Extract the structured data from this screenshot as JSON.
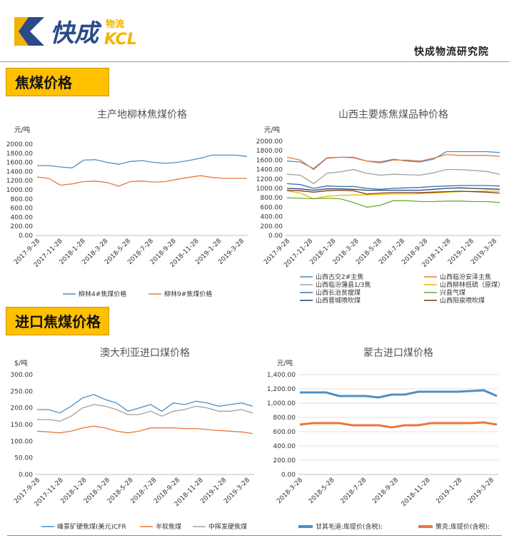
{
  "header": {
    "logo_main": "快成",
    "logo_sub": "物流",
    "logo_en": "KCL",
    "institute": "快成物流研究院"
  },
  "sections": {
    "coke_price": "焦煤价格",
    "import_coke": "进口焦煤价格"
  },
  "chart_data": [
    {
      "id": "linlin",
      "type": "line",
      "title": "主产地柳林焦煤价格",
      "unit_label": "元/吨",
      "ylim": [
        0,
        2000
      ],
      "yticks": [
        "0.00",
        "200.00",
        "400.00",
        "600.00",
        "800.00",
        "1000.00",
        "1200.00",
        "1400.00",
        "1600.00",
        "1800.00",
        "2000.00"
      ],
      "x_labels": [
        "2017-9-28",
        "2017-11-28",
        "2018-1-28",
        "2018-3-28",
        "2018-5-28",
        "2018-7-28",
        "2018-9-28",
        "2018-11-28",
        "2019-1-28",
        "2019-3-28"
      ],
      "series": [
        {
          "name": "柳林4#焦煤价格",
          "color": "#4a90c8",
          "values": [
            1530,
            1530,
            1500,
            1480,
            1650,
            1660,
            1600,
            1560,
            1620,
            1640,
            1600,
            1580,
            1600,
            1640,
            1690,
            1760,
            1760,
            1760,
            1730
          ]
        },
        {
          "name": "柳林9#焦煤价格",
          "color": "#e8783a",
          "values": [
            1280,
            1250,
            1100,
            1130,
            1180,
            1190,
            1160,
            1080,
            1180,
            1190,
            1170,
            1180,
            1230,
            1270,
            1310,
            1270,
            1250,
            1250,
            1250
          ]
        }
      ]
    },
    {
      "id": "shanxi",
      "type": "line",
      "title": "山西主要炼焦煤品种价格",
      "unit_label": "元/吨",
      "ylim": [
        0,
        2000
      ],
      "yticks": [
        "0.00",
        "200.00",
        "400.00",
        "600.00",
        "800.00",
        "1000.00",
        "1200.00",
        "1400.00",
        "1600.00",
        "1800.00",
        "2000.00"
      ],
      "x_labels": [
        "2017-9-28",
        "2017-11-28",
        "2018-1-28",
        "2018-3-28",
        "2018-5-28",
        "2018-7-28",
        "2018-9-28",
        "2018-11-28",
        "2019-1-28",
        "2019-3-28"
      ],
      "series": [
        {
          "name": "山西古交2#主焦",
          "color": "#4a90c8",
          "values": [
            1580,
            1560,
            1420,
            1650,
            1660,
            1660,
            1580,
            1560,
            1620,
            1580,
            1560,
            1620,
            1780,
            1780,
            1780,
            1780,
            1760
          ]
        },
        {
          "name": "山西临汾安泽主焦",
          "color": "#e8783a",
          "values": [
            1660,
            1600,
            1400,
            1640,
            1660,
            1650,
            1580,
            1540,
            1600,
            1600,
            1580,
            1640,
            1720,
            1700,
            1700,
            1700,
            1680
          ]
        },
        {
          "name": "山西临汾蒲县1/3焦",
          "color": "#a0a0a0",
          "values": [
            1300,
            1280,
            1100,
            1320,
            1350,
            1400,
            1320,
            1280,
            1300,
            1290,
            1280,
            1330,
            1400,
            1400,
            1380,
            1360,
            1300
          ]
        },
        {
          "name": "山西柳林低硫（原煤）",
          "color": "#f0b400",
          "values": [
            950,
            900,
            780,
            830,
            850,
            860,
            860,
            870,
            880,
            880,
            890,
            900,
            920,
            930,
            940,
            940,
            940
          ]
        },
        {
          "name": "山西长治贫瘦煤",
          "color": "#3a6ea8",
          "values": [
            1100,
            1080,
            1000,
            1050,
            1040,
            1040,
            1000,
            980,
            1000,
            1010,
            1020,
            1040,
            1050,
            1060,
            1060,
            1060,
            1050
          ]
        },
        {
          "name": "兴县气煤",
          "color": "#6aaa3a",
          "values": [
            800,
            790,
            780,
            790,
            780,
            700,
            600,
            640,
            740,
            740,
            720,
            720,
            730,
            730,
            720,
            720,
            700
          ]
        },
        {
          "name": "山西晋城喷吹煤",
          "color": "#264478",
          "values": [
            1000,
            990,
            960,
            990,
            990,
            980,
            960,
            960,
            960,
            960,
            960,
            980,
            1000,
            1010,
            1000,
            990,
            980
          ]
        },
        {
          "name": "山西阳泉喷吹煤",
          "color": "#7a3c10",
          "values": [
            960,
            950,
            920,
            950,
            960,
            950,
            880,
            900,
            910,
            910,
            910,
            920,
            930,
            940,
            930,
            920,
            900
          ]
        }
      ]
    },
    {
      "id": "australia",
      "type": "line",
      "title": "澳大利亚进口煤价格",
      "unit_label": "$/吨",
      "ylim": [
        0,
        300
      ],
      "yticks": [
        "0.00",
        "50.00",
        "100.00",
        "150.00",
        "200.00",
        "250.00",
        "300.00"
      ],
      "x_labels": [
        "2017-9-28",
        "2017-11-28",
        "2018-1-28",
        "2018-3-28",
        "2018-5-28",
        "2018-7-28",
        "2018-9-28",
        "2018-11-28",
        "2019-1-28",
        "2019-3-28"
      ],
      "series": [
        {
          "name": "峰景矿硬焦煤(美元)CFR",
          "color": "#4a90c8",
          "values": [
            195,
            195,
            185,
            205,
            230,
            240,
            225,
            215,
            190,
            200,
            210,
            190,
            215,
            210,
            220,
            215,
            205,
            210,
            215,
            205
          ]
        },
        {
          "name": "半软焦煤",
          "color": "#e8783a",
          "values": [
            130,
            128,
            125,
            130,
            140,
            145,
            140,
            130,
            125,
            130,
            140,
            140,
            140,
            138,
            138,
            135,
            132,
            130,
            128,
            123
          ]
        },
        {
          "name": "中挥发硬焦煤",
          "color": "#a0a0a0",
          "values": [
            165,
            165,
            160,
            175,
            200,
            210,
            205,
            195,
            180,
            180,
            190,
            175,
            190,
            195,
            205,
            200,
            190,
            190,
            195,
            185
          ]
        }
      ]
    },
    {
      "id": "mongolia",
      "type": "line",
      "title": "蒙古进口煤价格",
      "unit_label": "元/吨",
      "ylim": [
        0,
        1400
      ],
      "yticks": [
        "0.00",
        "200.00",
        "400.00",
        "600.00",
        "800.00",
        "1,000.00",
        "1,200.00",
        "1,400.00"
      ],
      "x_labels": [
        "2018-3-28",
        "2018-5-28",
        "2018-7-28",
        "2018-9-28",
        "2018-11-28",
        "2019-1-28",
        "2019-3-28"
      ],
      "series": [
        {
          "name": "甘其毛道:库提价(含税):",
          "color": "#4a90c8",
          "values": [
            1150,
            1150,
            1150,
            1100,
            1100,
            1100,
            1080,
            1120,
            1120,
            1160,
            1160,
            1160,
            1160,
            1170,
            1180,
            1100
          ]
        },
        {
          "name": "策克:库提价(含税):",
          "color": "#e8783a",
          "values": [
            700,
            720,
            720,
            720,
            690,
            690,
            690,
            660,
            690,
            690,
            720,
            720,
            720,
            720,
            730,
            700
          ]
        }
      ]
    }
  ]
}
